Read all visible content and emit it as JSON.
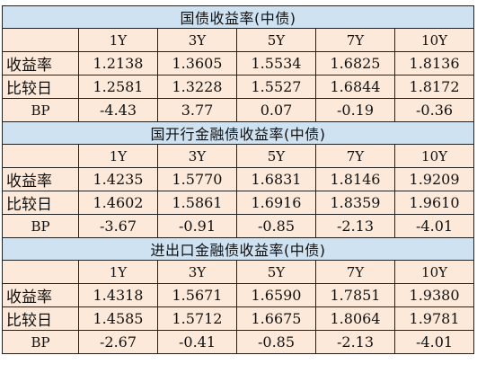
{
  "sections": [
    {
      "title": "国债收益率(中债)",
      "tenors": [
        "1Y",
        "3Y",
        "5Y",
        "7Y",
        "10Y"
      ],
      "rows": [
        {
          "label": "收益率",
          "values": [
            "1.2138",
            "1.3605",
            "1.5534",
            "1.6825",
            "1.8136"
          ]
        },
        {
          "label": "比较日",
          "values": [
            "1.2581",
            "1.3228",
            "1.5527",
            "1.6844",
            "1.8172"
          ]
        },
        {
          "label": "BP",
          "values": [
            "-4.43",
            "3.77",
            "0.07",
            "-0.19",
            "-0.36"
          ]
        }
      ]
    },
    {
      "title": "国开行金融债收益率(中债)",
      "tenors": [
        "1Y",
        "3Y",
        "5Y",
        "7Y",
        "10Y"
      ],
      "rows": [
        {
          "label": "收益率",
          "values": [
            "1.4235",
            "1.5770",
            "1.6831",
            "1.8146",
            "1.9209"
          ]
        },
        {
          "label": "比较日",
          "values": [
            "1.4602",
            "1.5861",
            "1.6916",
            "1.8359",
            "1.9610"
          ]
        },
        {
          "label": "BP",
          "values": [
            "-3.67",
            "-0.91",
            "-0.85",
            "-2.13",
            "-4.01"
          ]
        }
      ]
    },
    {
      "title": "进出口金融债收益率(中债)",
      "tenors": [
        "1Y",
        "3Y",
        "5Y",
        "7Y",
        "10Y"
      ],
      "rows": [
        {
          "label": "收益率",
          "values": [
            "1.4318",
            "1.5671",
            "1.6590",
            "1.7851",
            "1.9380"
          ]
        },
        {
          "label": "比较日",
          "values": [
            "1.4585",
            "1.5712",
            "1.6675",
            "1.8064",
            "1.9781"
          ]
        },
        {
          "label": "BP",
          "values": [
            "-2.67",
            "-0.41",
            "-0.85",
            "-2.13",
            "-4.01"
          ]
        }
      ]
    }
  ]
}
